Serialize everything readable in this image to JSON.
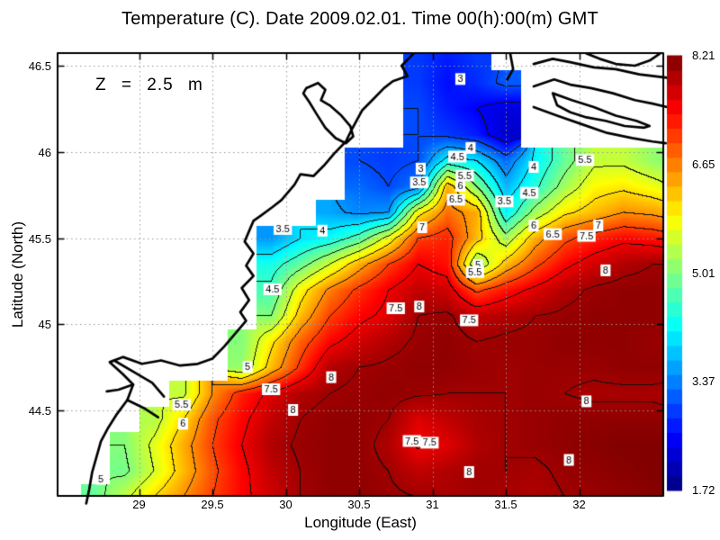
{
  "title": "Temperature (C). Date 2009.02.01. Time 00(h):00(m) GMT",
  "annotation": "Z = 2.5 m",
  "axes": {
    "x": {
      "label": "Longitude (East)",
      "tick_labels": [
        "29",
        "29.5",
        "30",
        "30.5",
        "31",
        "31.5",
        "32"
      ],
      "tick_values": [
        29,
        29.5,
        30,
        30.5,
        31,
        31.5,
        32
      ]
    },
    "y": {
      "label": "Latitude (North)",
      "tick_labels": [
        "46.5",
        "46",
        "45.5",
        "45",
        "44.5"
      ],
      "tick_values": [
        46.5,
        46,
        45.5,
        45,
        44.5
      ]
    }
  },
  "colorbar": {
    "tick_labels": [
      "8.21",
      "6.65",
      "5.01",
      "3.37",
      "1.72"
    ],
    "min": 1.72,
    "max": 8.21,
    "colormap": "jet",
    "steps": 30
  },
  "colors": {
    "land": "#ffffff",
    "coastline": "#000000",
    "gridline": "#999999",
    "contour": "#101010"
  },
  "chart_data": {
    "type": "heatmap",
    "title": "Temperature (C). Date 2009.02.01. Time 00(h):00(m) GMT",
    "xlabel": "Longitude (East)",
    "ylabel": "Latitude (North)",
    "x_range": [
      28.44,
      32.57
    ],
    "y_range": [
      44.0,
      46.57
    ],
    "value_range": [
      1.72,
      8.21
    ],
    "contour_interval": 0.5,
    "grid": {
      "lon0": 28.5,
      "dlon": 0.2,
      "ncols": 22,
      "lat0": 46.55,
      "dlat": -0.15,
      "nrows": 18,
      "values": [
        [
          null,
          null,
          null,
          null,
          null,
          null,
          null,
          null,
          null,
          null,
          null,
          null,
          2.9,
          2.7,
          2.9,
          null,
          null,
          null,
          null,
          null,
          null,
          null
        ],
        [
          null,
          null,
          null,
          null,
          null,
          null,
          null,
          null,
          null,
          null,
          null,
          null,
          2.9,
          2.6,
          2.8,
          3.1,
          null,
          null,
          null,
          null,
          null,
          null
        ],
        [
          null,
          null,
          null,
          null,
          null,
          null,
          null,
          null,
          null,
          null,
          null,
          null,
          3.0,
          2.7,
          2.5,
          2.3,
          null,
          null,
          null,
          null,
          null,
          null
        ],
        [
          null,
          null,
          null,
          null,
          null,
          null,
          null,
          null,
          null,
          null,
          null,
          null,
          3.0,
          2.9,
          2.7,
          2.2,
          null,
          null,
          null,
          null,
          null,
          null
        ],
        [
          null,
          null,
          null,
          null,
          null,
          null,
          null,
          null,
          null,
          null,
          3.0,
          2.9,
          3.0,
          4.2,
          4.0,
          3.2,
          4.1,
          4.8,
          5.4,
          5.4,
          5.1,
          4.9
        ],
        [
          null,
          null,
          null,
          null,
          null,
          null,
          null,
          null,
          null,
          null,
          3.2,
          3.0,
          3.3,
          6.3,
          5.0,
          3.7,
          4.4,
          5.2,
          5.8,
          5.9,
          5.7,
          5.4
        ],
        [
          null,
          null,
          null,
          null,
          null,
          null,
          null,
          null,
          null,
          3.6,
          3.4,
          3.5,
          5.8,
          6.7,
          6.3,
          4.1,
          5.2,
          5.9,
          6.2,
          6.5,
          6.4,
          6.2
        ],
        [
          null,
          null,
          null,
          null,
          null,
          null,
          null,
          3.5,
          4.0,
          4.2,
          4.7,
          5.7,
          7.0,
          7.2,
          6.2,
          5.2,
          6.3,
          6.9,
          7.2,
          7.4,
          7.3,
          7.1
        ],
        [
          null,
          null,
          null,
          null,
          null,
          null,
          null,
          4.3,
          4.8,
          5.5,
          6.3,
          7.0,
          7.5,
          7.3,
          5.0,
          6.2,
          6.9,
          7.4,
          7.7,
          7.9,
          8.0,
          8.0
        ],
        [
          null,
          null,
          null,
          null,
          null,
          null,
          null,
          4.6,
          5.8,
          6.6,
          7.1,
          7.5,
          7.8,
          7.7,
          6.9,
          7.3,
          7.6,
          7.9,
          8.05,
          8.1,
          8.1,
          8.05
        ],
        [
          null,
          null,
          null,
          null,
          null,
          null,
          null,
          5.0,
          6.2,
          7.0,
          7.4,
          7.6,
          8.0,
          8.05,
          7.8,
          7.9,
          8.0,
          8.05,
          8.1,
          8.1,
          8.1,
          8.05
        ],
        [
          null,
          null,
          null,
          null,
          null,
          null,
          5.0,
          5.9,
          6.8,
          7.4,
          7.7,
          7.9,
          8.05,
          8.1,
          8.0,
          8.05,
          8.05,
          8.1,
          8.1,
          8.1,
          8.05,
          8.05
        ],
        [
          null,
          null,
          null,
          null,
          null,
          null,
          5.1,
          6.2,
          7.1,
          7.9,
          8.0,
          8.05,
          8.1,
          8.1,
          8.05,
          8.0,
          8.05,
          8.05,
          8.05,
          8.1,
          8.1,
          8.1
        ],
        [
          null,
          null,
          null,
          null,
          5.4,
          6.5,
          7.2,
          7.6,
          7.9,
          8.0,
          8.05,
          8.1,
          8.05,
          8.0,
          8.0,
          8.0,
          8.05,
          8.0,
          7.95,
          7.95,
          7.95,
          7.9
        ],
        [
          null,
          null,
          null,
          5.3,
          6.0,
          6.9,
          7.4,
          7.8,
          8.0,
          8.1,
          8.1,
          8.0,
          7.6,
          7.8,
          7.95,
          8.0,
          8.05,
          8.1,
          8.1,
          8.1,
          8.1,
          8.05
        ],
        [
          null,
          null,
          5.0,
          5.6,
          6.3,
          7.0,
          7.5,
          7.9,
          8.05,
          8.1,
          8.1,
          7.9,
          7.45,
          7.6,
          7.9,
          8.0,
          8.05,
          8.1,
          8.15,
          8.2,
          8.2,
          8.15
        ],
        [
          null,
          null,
          4.9,
          5.5,
          6.2,
          6.9,
          7.4,
          7.8,
          8.0,
          8.1,
          8.1,
          8.0,
          7.8,
          7.9,
          8.0,
          8.0,
          7.95,
          8.05,
          8.1,
          8.15,
          8.2,
          8.2
        ],
        [
          null,
          4.8,
          5.4,
          6.0,
          6.5,
          7.0,
          7.4,
          7.7,
          8.0,
          8.1,
          8.1,
          8.05,
          8.0,
          7.95,
          8.0,
          7.95,
          7.9,
          8.0,
          8.05,
          8.1,
          8.15,
          8.2
        ]
      ]
    },
    "contour_labels": [
      {
        "v": "3",
        "lon": 31.19,
        "lat": 46.42
      },
      {
        "v": "4",
        "lon": 31.26,
        "lat": 46.02
      },
      {
        "v": "4.5",
        "lon": 31.17,
        "lat": 45.97
      },
      {
        "v": "5.5",
        "lon": 31.22,
        "lat": 45.86
      },
      {
        "v": "6",
        "lon": 31.19,
        "lat": 45.8
      },
      {
        "v": "6.5",
        "lon": 31.16,
        "lat": 45.72
      },
      {
        "v": "3",
        "lon": 30.92,
        "lat": 45.9
      },
      {
        "v": "3.5",
        "lon": 30.91,
        "lat": 45.82
      },
      {
        "v": "3.5",
        "lon": 31.49,
        "lat": 45.71
      },
      {
        "v": "4",
        "lon": 31.69,
        "lat": 45.91
      },
      {
        "v": "4.5",
        "lon": 31.66,
        "lat": 45.76
      },
      {
        "v": "5.5",
        "lon": 32.04,
        "lat": 45.95
      },
      {
        "v": "6",
        "lon": 31.69,
        "lat": 45.57
      },
      {
        "v": "6.5",
        "lon": 31.82,
        "lat": 45.52
      },
      {
        "v": "7",
        "lon": 32.13,
        "lat": 45.57
      },
      {
        "v": "7.5",
        "lon": 32.05,
        "lat": 45.51
      },
      {
        "v": "7",
        "lon": 30.93,
        "lat": 45.56
      },
      {
        "v": "5",
        "lon": 31.31,
        "lat": 45.34
      },
      {
        "v": "5.5",
        "lon": 31.29,
        "lat": 45.3
      },
      {
        "v": "8",
        "lon": 32.18,
        "lat": 45.31
      },
      {
        "v": "3.5",
        "lon": 29.98,
        "lat": 45.55
      },
      {
        "v": "4",
        "lon": 30.25,
        "lat": 45.54
      },
      {
        "v": "4.5",
        "lon": 29.91,
        "lat": 45.2
      },
      {
        "v": "7.5",
        "lon": 30.75,
        "lat": 45.09
      },
      {
        "v": "8",
        "lon": 30.91,
        "lat": 45.1
      },
      {
        "v": "7.5",
        "lon": 31.25,
        "lat": 45.02
      },
      {
        "v": "5",
        "lon": 29.74,
        "lat": 44.75
      },
      {
        "v": "7.5",
        "lon": 29.9,
        "lat": 44.62
      },
      {
        "v": "5.5",
        "lon": 29.29,
        "lat": 44.53
      },
      {
        "v": "6",
        "lon": 29.3,
        "lat": 44.42
      },
      {
        "v": "5",
        "lon": 28.74,
        "lat": 44.1
      },
      {
        "v": "8",
        "lon": 30.31,
        "lat": 44.69
      },
      {
        "v": "8",
        "lon": 30.05,
        "lat": 44.5
      },
      {
        "v": "7.5",
        "lon": 30.86,
        "lat": 44.32
      },
      {
        "v": "7.5",
        "lon": 30.98,
        "lat": 44.31
      },
      {
        "v": "8",
        "lon": 31.25,
        "lat": 44.14
      },
      {
        "v": "8",
        "lon": 32.05,
        "lat": 44.55
      },
      {
        "v": "8",
        "lon": 31.93,
        "lat": 44.21
      },
      {
        "v": "8",
        "lon": 31.68,
        "lat": 44.0
      }
    ],
    "coastlines": [
      [
        [
          30.87,
          46.57
        ],
        [
          30.79,
          46.5
        ],
        [
          30.83,
          46.44
        ],
        [
          30.73,
          46.41
        ],
        [
          30.67,
          46.37
        ],
        [
          30.59,
          46.3
        ],
        [
          30.52,
          46.24
        ],
        [
          30.45,
          46.13
        ],
        [
          30.41,
          46.06
        ],
        [
          30.33,
          45.99
        ],
        [
          30.26,
          45.92
        ],
        [
          30.19,
          45.86
        ],
        [
          30.1,
          45.87
        ],
        [
          30.06,
          45.81
        ],
        [
          29.97,
          45.72
        ],
        [
          29.91,
          45.68
        ],
        [
          29.83,
          45.63
        ],
        [
          29.78,
          45.6
        ],
        [
          29.72,
          45.48
        ],
        [
          29.78,
          45.41
        ],
        [
          29.73,
          45.34
        ],
        [
          29.78,
          45.28
        ],
        [
          29.7,
          45.21
        ],
        [
          29.75,
          45.14
        ],
        [
          29.69,
          45.07
        ],
        [
          29.73,
          45.02
        ],
        [
          29.64,
          44.93
        ],
        [
          29.58,
          44.87
        ],
        [
          29.5,
          44.8
        ],
        [
          29.4,
          44.77
        ],
        [
          29.28,
          44.76
        ],
        [
          29.15,
          44.79
        ],
        [
          29.02,
          44.77
        ],
        [
          28.89,
          44.81
        ],
        [
          28.8,
          44.78
        ],
        [
          28.89,
          44.71
        ],
        [
          28.96,
          44.65
        ],
        [
          28.92,
          44.56
        ],
        [
          28.85,
          44.48
        ],
        [
          28.79,
          44.4
        ],
        [
          28.74,
          44.32
        ],
        [
          28.71,
          44.23
        ],
        [
          28.68,
          44.14
        ],
        [
          28.66,
          44.04
        ],
        [
          28.64,
          43.96
        ]
      ],
      [
        [
          30.14,
          46.37
        ],
        [
          30.22,
          46.4
        ],
        [
          30.27,
          46.36
        ],
        [
          30.24,
          46.3
        ],
        [
          30.3,
          46.27
        ],
        [
          30.38,
          46.21
        ],
        [
          30.44,
          46.15
        ],
        [
          30.46,
          46.09
        ],
        [
          30.41,
          46.05
        ],
        [
          30.34,
          46.08
        ],
        [
          30.27,
          46.14
        ],
        [
          30.21,
          46.22
        ],
        [
          30.16,
          46.29
        ],
        [
          30.12,
          46.34
        ],
        [
          30.14,
          46.37
        ]
      ],
      [
        [
          28.83,
          44.79
        ],
        [
          28.97,
          44.72
        ],
        [
          29.09,
          44.66
        ],
        [
          29.17,
          44.58
        ]
      ],
      [
        [
          28.96,
          44.65
        ],
        [
          28.86,
          44.62
        ],
        [
          28.78,
          44.61
        ]
      ],
      [
        [
          28.92,
          44.56
        ],
        [
          29.04,
          44.51
        ],
        [
          29.13,
          44.46
        ]
      ],
      [
        [
          31.53,
          46.57
        ],
        [
          31.55,
          46.48
        ],
        [
          31.51,
          46.42
        ]
      ],
      [
        [
          32.05,
          46.57
        ],
        [
          32.14,
          46.54
        ],
        [
          32.25,
          46.51
        ],
        [
          32.38,
          46.5
        ],
        [
          32.48,
          46.53
        ],
        [
          32.55,
          46.57
        ]
      ],
      [
        [
          31.69,
          46.51
        ],
        [
          31.82,
          46.54
        ],
        [
          31.94,
          46.52
        ],
        [
          32.1,
          46.49
        ],
        [
          32.25,
          46.48
        ],
        [
          32.41,
          46.45
        ],
        [
          32.6,
          46.43
        ]
      ],
      [
        [
          31.69,
          46.38
        ],
        [
          31.83,
          46.42
        ],
        [
          31.94,
          46.39
        ],
        [
          32.08,
          46.37
        ],
        [
          32.23,
          46.34
        ],
        [
          32.38,
          46.3
        ],
        [
          32.5,
          46.28
        ],
        [
          32.6,
          46.26
        ]
      ],
      [
        [
          31.82,
          46.34
        ],
        [
          31.95,
          46.3
        ],
        [
          32.1,
          46.26
        ],
        [
          32.25,
          46.21
        ],
        [
          32.39,
          46.18
        ],
        [
          32.48,
          46.15
        ],
        [
          32.44,
          46.14
        ],
        [
          32.31,
          46.15
        ],
        [
          32.18,
          46.18
        ],
        [
          32.05,
          46.2
        ],
        [
          31.94,
          46.23
        ],
        [
          31.85,
          46.27
        ],
        [
          31.82,
          46.34
        ]
      ],
      [
        [
          31.69,
          46.26
        ],
        [
          31.85,
          46.21
        ],
        [
          32.02,
          46.16
        ],
        [
          32.19,
          46.11
        ],
        [
          32.36,
          46.08
        ],
        [
          32.5,
          46.06
        ],
        [
          32.59,
          46.05
        ]
      ]
    ],
    "legend_position": "right-colorbar",
    "grid_on": true
  }
}
